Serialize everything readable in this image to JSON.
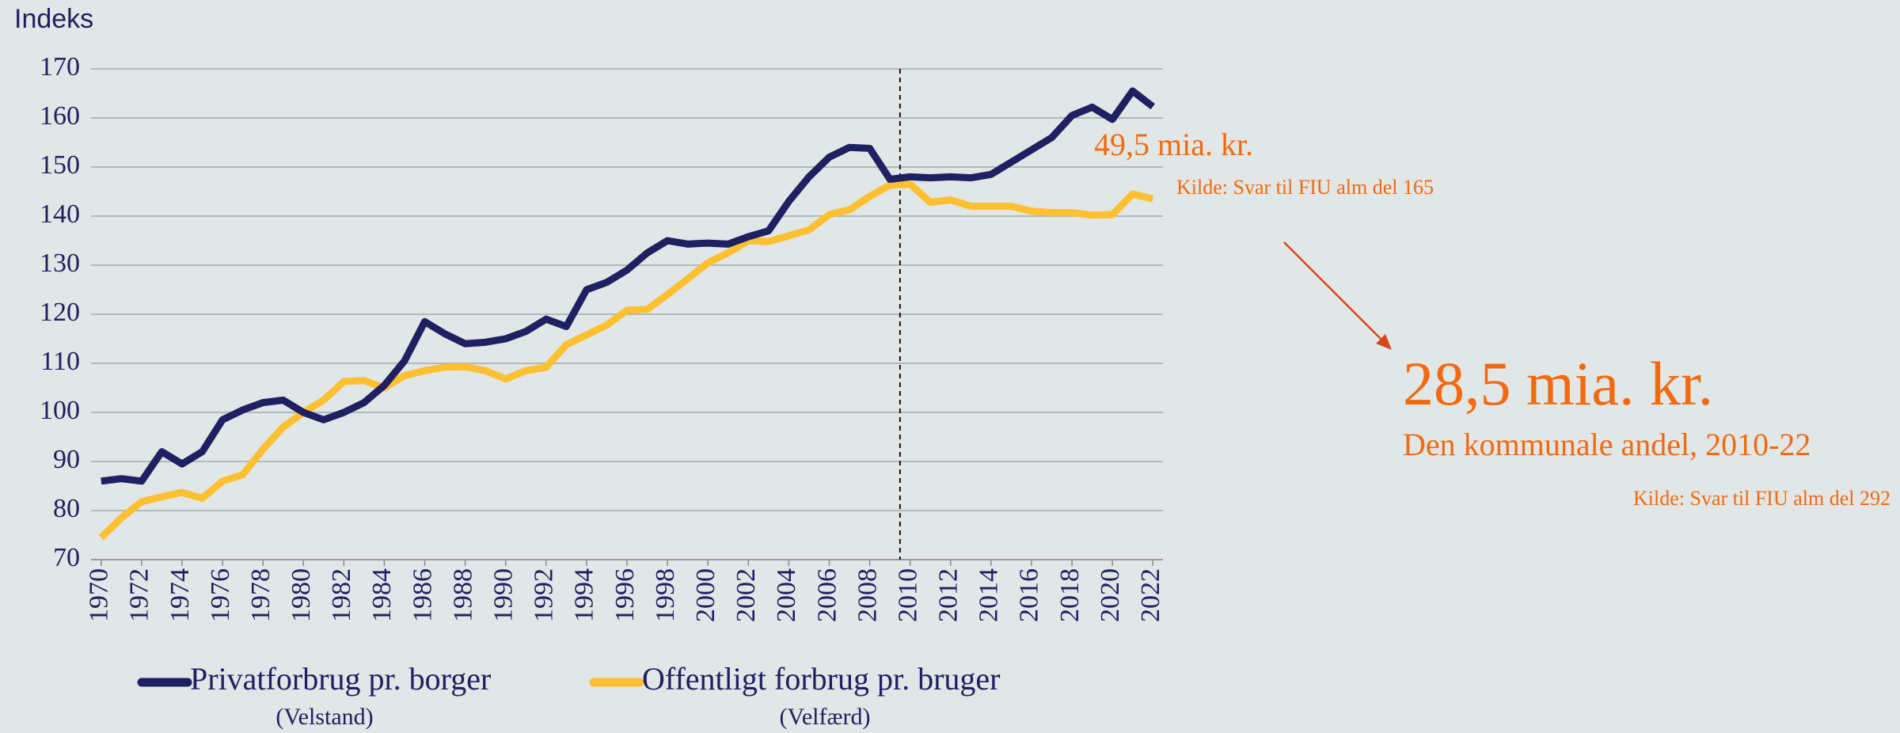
{
  "chart_data": {
    "type": "line",
    "y_label": "Indeks",
    "x": [
      1970,
      1971,
      1972,
      1973,
      1974,
      1975,
      1976,
      1977,
      1978,
      1979,
      1980,
      1981,
      1982,
      1983,
      1984,
      1985,
      1986,
      1987,
      1988,
      1989,
      1990,
      1991,
      1992,
      1993,
      1994,
      1995,
      1996,
      1997,
      1998,
      1999,
      2000,
      2001,
      2002,
      2003,
      2004,
      2005,
      2006,
      2007,
      2008,
      2009,
      2010,
      2011,
      2012,
      2013,
      2014,
      2015,
      2016,
      2017,
      2018,
      2019,
      2020,
      2021,
      2022
    ],
    "series": [
      {
        "name": "Privatforbrug pr. borger",
        "note": "(Velstand)",
        "color": "#1f2062",
        "values": [
          86,
          86.5,
          86,
          92,
          89.5,
          92,
          98.5,
          100.5,
          102,
          102.5,
          100,
          98.5,
          100,
          102,
          105.5,
          110.5,
          118.5,
          116,
          114,
          114.3,
          115,
          116.5,
          119,
          117.5,
          125,
          126.5,
          129,
          132.5,
          135,
          134.3,
          134.5,
          134.3,
          135.8,
          137,
          143,
          148,
          152,
          154,
          153.8,
          147.5,
          148,
          147.8,
          148,
          147.8,
          148.5,
          151,
          153.5,
          156,
          160.5,
          162.2,
          159.7,
          165.5,
          162.3
        ]
      },
      {
        "name": "Offentligt forbrug pr. bruger",
        "note": "(Velfærd)",
        "color": "#fdc031",
        "values": [
          74.5,
          78.5,
          81.8,
          82.8,
          83.7,
          82.5,
          86,
          87.3,
          92.5,
          97,
          100,
          102.5,
          106.3,
          106.5,
          105,
          107.5,
          108.5,
          109.2,
          109.3,
          108.5,
          106.8,
          108.5,
          109.2,
          113.8,
          115.8,
          117.8,
          120.8,
          121,
          124,
          127.2,
          130.5,
          132.5,
          135,
          134.8,
          136,
          137.2,
          140.3,
          141.3,
          144,
          146.3,
          146.5,
          142.8,
          143.3,
          142,
          142,
          142,
          141,
          140.7,
          140.7,
          140.2,
          140.3,
          144.5,
          143.5
        ]
      }
    ],
    "xlim": [
      1969.5,
      2022.5
    ],
    "xticks": [
      1970,
      1972,
      1974,
      1976,
      1978,
      1980,
      1982,
      1984,
      1986,
      1988,
      1990,
      1992,
      1994,
      1996,
      1998,
      2000,
      2002,
      2004,
      2006,
      2008,
      2010,
      2012,
      2014,
      2016,
      2018,
      2020,
      2022
    ],
    "ylim": [
      70,
      170
    ],
    "yticks": [
      70,
      80,
      90,
      100,
      110,
      120,
      130,
      140,
      150,
      160,
      170
    ],
    "grid": true,
    "reference_line_x": 2009.5,
    "annotations": [
      "49,5 mia. kr.",
      "Kilde: Svar til FIU alm del 165",
      "28,5 mia. kr.",
      "Den kommunale andel, 2010-22",
      "Kilde: Svar til FIU alm del 292"
    ],
    "annotation_color": "#f26a10"
  }
}
